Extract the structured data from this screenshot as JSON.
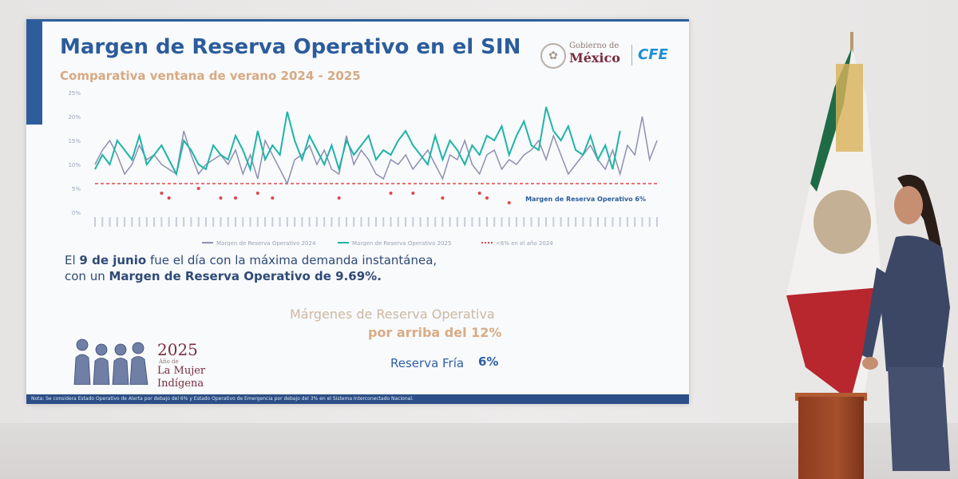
{
  "slide": {
    "title": "Margen de Reserva Operativo en el SIN",
    "subtitle": "Comparativa ventana de verano 2024 - 2025",
    "logos": {
      "gobierno_small": "Gobierno de",
      "gobierno_big": "México",
      "cfe": "CFE"
    },
    "statement": {
      "part1": "El ",
      "date_bold": "9 de junio",
      "part2": " fue el día con la máxima demanda instantánea,",
      "part3": "con un ",
      "value_bold": "Margen de Reserva Operativo de 9.69%."
    },
    "margenes_label": "Márgenes de Reserva Operativa",
    "margenes_value": "por arriba del 12%",
    "reserva_label": "Reserva Fría",
    "reserva_value": "6%",
    "year_badge": {
      "year": "2025",
      "small": "Año de",
      "line1": "La Mujer",
      "line2": "Indígena"
    },
    "footnote": "Nota: Se considera Estado Operativo de Alerta por debajo del 6% y Estado Operativo de Emergencia por debajo del 3% en el Sistema Interconectado Nacional."
  },
  "colors": {
    "series_2024": "#8f8fae",
    "series_2025": "#1fb3a8",
    "threshold": "#e0474c",
    "title_blue": "#2c5c9b",
    "accent_tan": "#d7a982"
  },
  "chart_data": {
    "type": "line",
    "ylim": [
      0,
      25
    ],
    "yticks": [
      "25%",
      "20%",
      "15%",
      "10%",
      "5%",
      "0%"
    ],
    "grid": false,
    "legend_position": "bottom",
    "threshold_label": "Margen de Reserva Operativo 6%",
    "threshold_value": 6,
    "series": [
      {
        "name": "Margen de Reserva Operativo 2024",
        "values": [
          10,
          13,
          15,
          12,
          8,
          10,
          14,
          11,
          12,
          10,
          9,
          8,
          17,
          12,
          8,
          10,
          11,
          12,
          10,
          13,
          8,
          12,
          7,
          15,
          12,
          9,
          6,
          11,
          12,
          14,
          10,
          13,
          9,
          8,
          16,
          10,
          13,
          11,
          8,
          7,
          11,
          10,
          12,
          9,
          11,
          13,
          10,
          7,
          12,
          11,
          15,
          10,
          8,
          12,
          13,
          9,
          11,
          10,
          12,
          13,
          15,
          11,
          16,
          12,
          8,
          10,
          12,
          14,
          11,
          9,
          13,
          8,
          14,
          12,
          20,
          11,
          15
        ]
      },
      {
        "name": "Margen de Reserva Operativo 2025",
        "values": [
          9,
          12,
          10,
          15,
          13,
          11,
          16,
          10,
          12,
          14,
          11,
          8,
          15,
          13,
          10,
          9,
          14,
          12,
          11,
          16,
          13,
          9,
          17,
          11,
          14,
          12,
          21,
          15,
          11,
          16,
          13,
          10,
          14,
          9,
          15,
          12,
          14,
          16,
          11,
          13,
          12,
          15,
          17,
          14,
          12,
          10,
          16,
          11,
          15,
          13,
          10,
          14,
          12,
          16,
          15,
          18,
          12,
          16,
          19,
          14,
          13,
          22,
          17,
          15,
          18,
          13,
          12,
          16,
          11,
          14,
          9,
          17
        ]
      },
      {
        "name": "<6% en el año 2024",
        "points": [
          [
            9,
            4
          ],
          [
            10,
            3
          ],
          [
            14,
            5
          ],
          [
            17,
            3
          ],
          [
            19,
            3
          ],
          [
            22,
            4
          ],
          [
            24,
            3
          ],
          [
            33,
            3
          ],
          [
            40,
            4
          ],
          [
            43,
            4
          ],
          [
            47,
            3
          ],
          [
            52,
            4
          ],
          [
            53,
            3
          ],
          [
            56,
            2
          ]
        ]
      }
    ]
  },
  "scene": {
    "flag": "mexican-flag",
    "person": "presenter"
  }
}
